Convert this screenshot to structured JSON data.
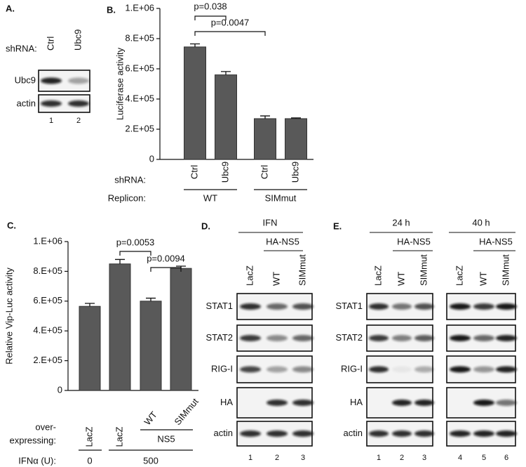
{
  "chart_data": [
    {
      "type": "bar",
      "panel": "B.",
      "ylabel": "Luciferase activity",
      "categories": [
        "Ctrl",
        "Ubc9",
        "Ctrl",
        "Ubc9"
      ],
      "values": [
        745000,
        560000,
        270000,
        270000
      ],
      "errors": [
        20000,
        22000,
        18000,
        5000
      ],
      "color": "#595959",
      "ylim": [
        0,
        1000000
      ],
      "yticks": [
        0,
        {
          "value": 200000,
          "label": "2.E+05"
        },
        {
          "value": 400000,
          "label": "4.E+05"
        },
        {
          "value": 600000,
          "label": "6.E+05"
        },
        {
          "value": 800000,
          "label": "8.E+05"
        },
        {
          "value": 1000000,
          "label": "1.E+06"
        }
      ],
      "annotations": [
        "p=0.038",
        "p=0.0047"
      ],
      "category_label": "shRNA:",
      "group_label": "Replicon:",
      "groups": [
        "WT",
        "SIMmut"
      ]
    },
    {
      "type": "bar",
      "panel": "C.",
      "ylabel": "Relative Vip-Luc activity",
      "categories": [
        "LacZ",
        "LacZ",
        "WT",
        "SIMmut"
      ],
      "values": [
        565000,
        850000,
        600000,
        820000
      ],
      "errors": [
        20000,
        30000,
        20000,
        15000
      ],
      "color": "#595959",
      "ylim": [
        0,
        1000000
      ],
      "yticks": [
        0,
        {
          "value": 200000,
          "label": "2.E+05"
        },
        {
          "value": 400000,
          "label": "4.E+05"
        },
        {
          "value": 600000,
          "label": "6.E+05"
        },
        {
          "value": 800000,
          "label": "8.E+05"
        },
        {
          "value": 1000000,
          "label": "1.E+06"
        }
      ],
      "annotations": [
        "p=0.0053",
        "p=0.0094"
      ],
      "category_label": [
        "over-",
        "expressing:"
      ],
      "sub_group": "NS5",
      "dose_label": "IFNα (U):",
      "doses": [
        "0",
        "500"
      ]
    }
  ],
  "blots": [
    {
      "label": "A.",
      "lane_header": "shRNA:",
      "lanes": [
        "Ctrl",
        "Ubc9"
      ],
      "rows": [
        "Ubc9",
        "actin"
      ],
      "lane_numbers": [
        "1",
        "2"
      ]
    },
    {
      "label": "D.",
      "headers": [
        "IFN",
        "HA-NS5"
      ],
      "lanes": [
        "LacZ",
        "WT",
        "SIMmut"
      ],
      "rows": [
        "STAT1",
        "STAT2",
        "RIG-I",
        "HA",
        "actin"
      ],
      "lane_numbers": [
        "1",
        "2",
        "3"
      ]
    },
    {
      "label": "E.",
      "headers": [
        "24 h",
        "HA-NS5",
        "40 h",
        "HA-NS5"
      ],
      "lanes": [
        "LacZ",
        "WT",
        "SIMmut",
        "LacZ",
        "WT",
        "SIMmut"
      ],
      "rows": [
        "STAT1",
        "STAT2",
        "RIG-I",
        "HA",
        "actin"
      ],
      "lane_numbers": [
        "1",
        "2",
        "3",
        "4",
        "5",
        "6"
      ]
    }
  ]
}
